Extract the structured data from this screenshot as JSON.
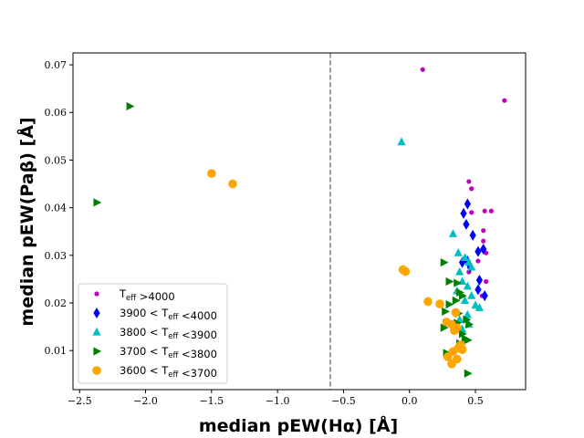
{
  "chart_data": {
    "type": "scatter",
    "title": "",
    "xlabel": "median pEW(Hα) [Å]",
    "ylabel": "median pEW(Paβ) [Å]",
    "xlim": [
      -2.55,
      0.88
    ],
    "ylim": [
      0.0018,
      0.0725
    ],
    "xticks": [
      -2.5,
      -2.0,
      -1.5,
      -1.0,
      -0.5,
      0.0,
      0.5
    ],
    "xtick_labels": [
      "−2.5",
      "−2.0",
      "−1.5",
      "−1.0",
      "−0.5",
      "0.0",
      "0.5"
    ],
    "yticks": [
      0.01,
      0.02,
      0.03,
      0.04,
      0.05,
      0.06,
      0.07
    ],
    "ytick_labels": [
      "0.01",
      "0.02",
      "0.03",
      "0.04",
      "0.05",
      "0.06",
      "0.07"
    ],
    "vline": {
      "x": -0.6,
      "style": "dashed",
      "color": "#808080"
    },
    "legend_position": "lower-left",
    "grid": false,
    "series": [
      {
        "name": "T_eff >4000",
        "label": {
          "prefix": "",
          "T": "T",
          "sub": "eff",
          "suffix": " >4000"
        },
        "marker": "circle-small",
        "color": "#bf00bf",
        "points": [
          [
            0.1,
            0.069
          ],
          [
            0.72,
            0.0625
          ],
          [
            0.45,
            0.0455
          ],
          [
            0.47,
            0.044
          ],
          [
            0.47,
            0.039
          ],
          [
            0.57,
            0.0393
          ],
          [
            0.62,
            0.0393
          ],
          [
            0.56,
            0.0352
          ],
          [
            0.56,
            0.033
          ],
          [
            0.52,
            0.0288
          ],
          [
            0.58,
            0.0305
          ],
          [
            0.45,
            0.0265
          ],
          [
            0.58,
            0.0245
          ],
          [
            0.55,
            0.0215
          ]
        ]
      },
      {
        "name": "3900 < T_eff <4000",
        "label": {
          "prefix": "3900 < ",
          "T": "T",
          "sub": "eff",
          "suffix": " <4000"
        },
        "marker": "thin-diamond",
        "color": "#0000ff",
        "points": [
          [
            0.44,
            0.0408
          ],
          [
            0.41,
            0.0388
          ],
          [
            0.43,
            0.0365
          ],
          [
            0.48,
            0.0342
          ],
          [
            0.52,
            0.0308
          ],
          [
            0.56,
            0.0313
          ],
          [
            0.4,
            0.0285
          ],
          [
            0.46,
            0.0275
          ],
          [
            0.53,
            0.0248
          ],
          [
            0.52,
            0.0228
          ],
          [
            0.57,
            0.0215
          ],
          [
            0.44,
            0.0288
          ]
        ]
      },
      {
        "name": "3800 < T_eff <3900",
        "label": {
          "prefix": "3800 < ",
          "T": "T",
          "sub": "eff",
          "suffix": " <3900"
        },
        "marker": "triangle-up",
        "color": "#00bfbf",
        "points": [
          [
            -0.06,
            0.0538
          ],
          [
            0.33,
            0.0345
          ],
          [
            0.37,
            0.0305
          ],
          [
            0.42,
            0.0295
          ],
          [
            0.45,
            0.0285
          ],
          [
            0.47,
            0.0275
          ],
          [
            0.38,
            0.0265
          ],
          [
            0.4,
            0.0245
          ],
          [
            0.44,
            0.0235
          ],
          [
            0.36,
            0.0225
          ],
          [
            0.47,
            0.0215
          ],
          [
            0.42,
            0.0205
          ],
          [
            0.5,
            0.0195
          ],
          [
            0.53,
            0.019
          ],
          [
            0.44,
            0.0175
          ],
          [
            0.38,
            0.0165
          ],
          [
            0.36,
            0.0155
          ],
          [
            0.45,
            0.0155
          ],
          [
            0.4,
            0.0145
          ]
        ]
      },
      {
        "name": "3700 < T_eff <3800",
        "label": {
          "prefix": "3700 < ",
          "T": "T",
          "sub": "eff",
          "suffix": " <3800"
        },
        "marker": "triangle-right",
        "color": "#008000",
        "points": [
          [
            -2.12,
            0.0613
          ],
          [
            -2.37,
            0.0411
          ],
          [
            0.26,
            0.0285
          ],
          [
            0.3,
            0.0245
          ],
          [
            0.36,
            0.0242
          ],
          [
            0.38,
            0.0222
          ],
          [
            0.4,
            0.0215
          ],
          [
            0.35,
            0.0205
          ],
          [
            0.3,
            0.0197
          ],
          [
            0.27,
            0.0182
          ],
          [
            0.37,
            0.0178
          ],
          [
            0.43,
            0.0165
          ],
          [
            0.36,
            0.0158
          ],
          [
            0.45,
            0.0155
          ],
          [
            0.26,
            0.0148
          ],
          [
            0.35,
            0.0142
          ],
          [
            0.4,
            0.0135
          ],
          [
            0.42,
            0.0125
          ],
          [
            0.38,
            0.0115
          ],
          [
            0.44,
            0.0122
          ],
          [
            0.28,
            0.0095
          ],
          [
            0.44,
            0.0052
          ]
        ]
      },
      {
        "name": "3600 < T_eff <3700",
        "label": {
          "prefix": "3600 < ",
          "T": "T",
          "sub": "eff",
          "suffix": " <3700"
        },
        "marker": "circle",
        "color": "#ffa500",
        "points": [
          [
            -1.5,
            0.0472
          ],
          [
            -1.34,
            0.045
          ],
          [
            -0.05,
            0.027
          ],
          [
            -0.03,
            0.0266
          ],
          [
            0.14,
            0.0203
          ],
          [
            0.23,
            0.0198
          ],
          [
            0.35,
            0.018
          ],
          [
            0.28,
            0.016
          ],
          [
            0.32,
            0.0155
          ],
          [
            0.36,
            0.0148
          ],
          [
            0.34,
            0.0142
          ],
          [
            0.37,
            0.0105
          ],
          [
            0.4,
            0.0102
          ],
          [
            0.33,
            0.0098
          ],
          [
            0.29,
            0.0087
          ],
          [
            0.36,
            0.0082
          ],
          [
            0.32,
            0.0072
          ],
          [
            0.39,
            0.0112
          ]
        ]
      }
    ]
  }
}
